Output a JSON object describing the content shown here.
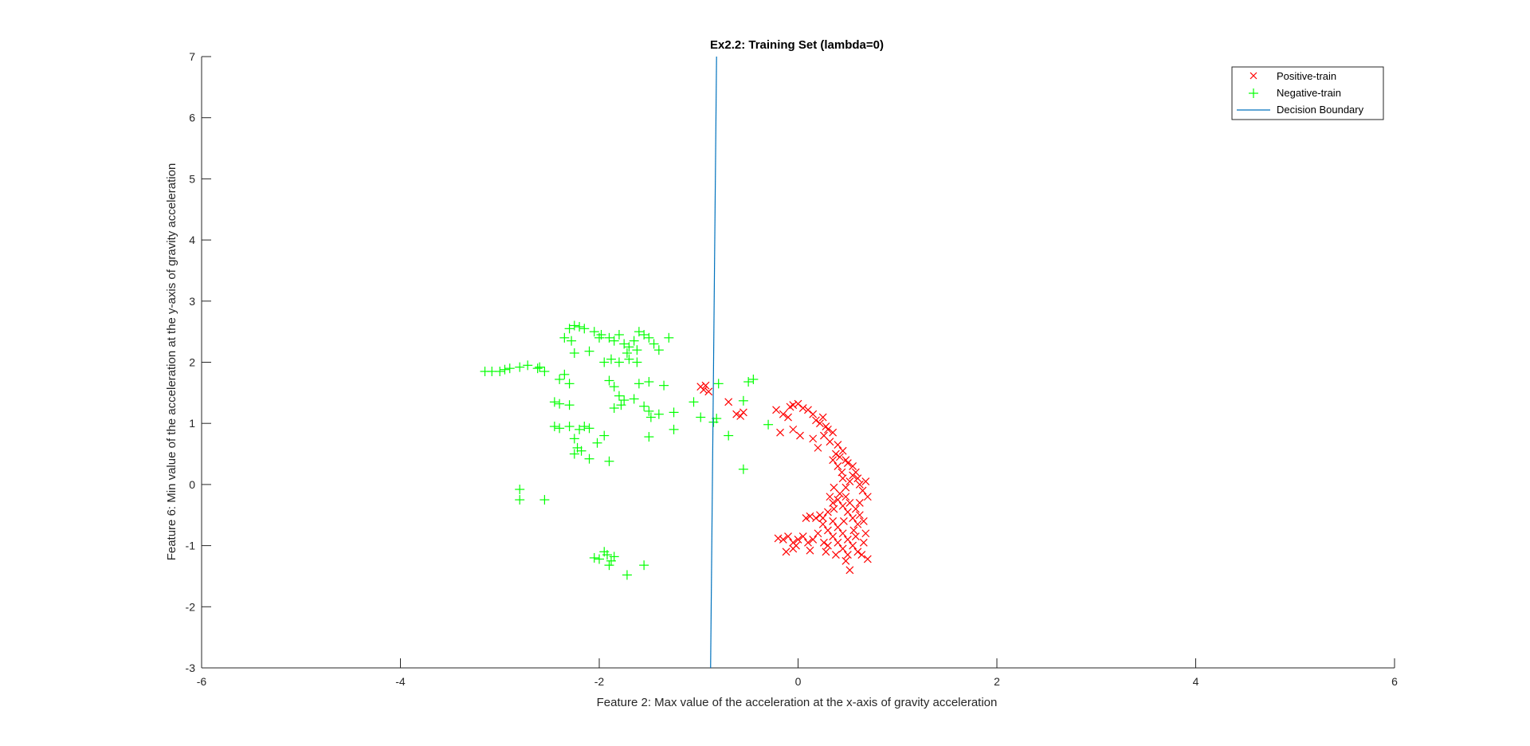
{
  "chart_data": {
    "type": "scatter",
    "title": "Ex2.2: Training Set (lambda=0)",
    "xlabel": "Feature 2: Max value of the acceleration at the x-axis of gravity acceleration",
    "ylabel": "Feature 6: Min value of the acceleration at the y-axis of gravity acceleration",
    "xlim": [
      -6,
      6
    ],
    "ylim": [
      -3,
      7
    ],
    "xticks": [
      "-6",
      "-4",
      "-2",
      "0",
      "2",
      "4",
      "6"
    ],
    "yticks": [
      "-3",
      "-2",
      "-1",
      "0",
      "1",
      "2",
      "3",
      "4",
      "5",
      "6",
      "7"
    ],
    "grid": false,
    "legend_position": "top-right",
    "series": [
      {
        "name": "Positive-train",
        "marker": "x",
        "color": "#ff0000",
        "points": [
          [
            -0.98,
            1.6
          ],
          [
            -0.95,
            1.55
          ],
          [
            -0.93,
            1.62
          ],
          [
            -0.9,
            1.52
          ],
          [
            -0.7,
            1.35
          ],
          [
            -0.62,
            1.15
          ],
          [
            -0.58,
            1.12
          ],
          [
            -0.55,
            1.18
          ],
          [
            -0.22,
            1.22
          ],
          [
            -0.15,
            1.15
          ],
          [
            -0.1,
            1.1
          ],
          [
            -0.08,
            1.27
          ],
          [
            -0.05,
            1.3
          ],
          [
            0.0,
            1.32
          ],
          [
            0.05,
            1.25
          ],
          [
            0.1,
            1.22
          ],
          [
            0.15,
            1.15
          ],
          [
            -0.18,
            0.85
          ],
          [
            -0.05,
            0.9
          ],
          [
            0.02,
            0.8
          ],
          [
            0.18,
            1.05
          ],
          [
            0.22,
            1.0
          ],
          [
            0.25,
            1.1
          ],
          [
            0.28,
            0.95
          ],
          [
            0.3,
            0.9
          ],
          [
            0.35,
            0.85
          ],
          [
            0.26,
            0.8
          ],
          [
            0.32,
            0.7
          ],
          [
            0.4,
            0.65
          ],
          [
            0.45,
            0.55
          ],
          [
            0.38,
            0.5
          ],
          [
            0.42,
            0.45
          ],
          [
            0.48,
            0.4
          ],
          [
            0.5,
            0.35
          ],
          [
            0.55,
            0.3
          ],
          [
            0.58,
            0.2
          ],
          [
            0.6,
            0.1
          ],
          [
            0.62,
            0.0
          ],
          [
            0.65,
            -0.1
          ],
          [
            0.68,
            0.05
          ],
          [
            0.7,
            -0.2
          ],
          [
            0.55,
            0.15
          ],
          [
            0.52,
            0.05
          ],
          [
            0.48,
            -0.05
          ],
          [
            0.45,
            0.1
          ],
          [
            0.42,
            -0.15
          ],
          [
            0.4,
            -0.25
          ],
          [
            0.45,
            -0.35
          ],
          [
            0.5,
            -0.45
          ],
          [
            0.55,
            -0.55
          ],
          [
            0.6,
            -0.65
          ],
          [
            0.62,
            -0.5
          ],
          [
            0.58,
            -0.4
          ],
          [
            0.52,
            -0.3
          ],
          [
            0.48,
            -0.2
          ],
          [
            0.35,
            -0.3
          ],
          [
            0.3,
            -0.45
          ],
          [
            0.25,
            -0.55
          ],
          [
            0.35,
            -0.6
          ],
          [
            0.4,
            -0.7
          ],
          [
            0.45,
            -0.8
          ],
          [
            0.5,
            -0.9
          ],
          [
            0.55,
            -1.0
          ],
          [
            0.6,
            -1.1
          ],
          [
            0.5,
            -1.15
          ],
          [
            0.45,
            -1.05
          ],
          [
            0.4,
            -0.95
          ],
          [
            0.35,
            -0.85
          ],
          [
            0.3,
            -0.75
          ],
          [
            0.25,
            -0.65
          ],
          [
            0.2,
            -0.8
          ],
          [
            0.15,
            -0.9
          ],
          [
            0.1,
            -0.95
          ],
          [
            0.05,
            -0.85
          ],
          [
            0.0,
            -0.9
          ],
          [
            -0.05,
            -0.95
          ],
          [
            -0.1,
            -0.85
          ],
          [
            -0.15,
            -0.9
          ],
          [
            -0.2,
            -0.88
          ],
          [
            -0.05,
            -1.05
          ],
          [
            0.12,
            -1.08
          ],
          [
            0.28,
            -1.1
          ],
          [
            0.38,
            -1.15
          ],
          [
            0.48,
            -1.25
          ],
          [
            0.52,
            -1.4
          ],
          [
            0.7,
            -1.22
          ],
          [
            0.64,
            -1.15
          ],
          [
            0.66,
            -0.95
          ],
          [
            0.68,
            -0.8
          ],
          [
            0.58,
            -0.85
          ],
          [
            0.22,
            -0.5
          ],
          [
            0.18,
            -0.55
          ],
          [
            0.12,
            -0.52
          ],
          [
            0.08,
            -0.55
          ],
          [
            0.32,
            -0.2
          ],
          [
            0.36,
            -0.05
          ],
          [
            0.44,
            0.2
          ],
          [
            0.4,
            0.3
          ],
          [
            0.35,
            0.4
          ],
          [
            0.2,
            0.6
          ],
          [
            0.15,
            0.75
          ],
          [
            0.3,
            -1.0
          ],
          [
            0.62,
            -0.3
          ],
          [
            0.66,
            -0.6
          ],
          [
            0.56,
            -0.75
          ],
          [
            0.46,
            -0.6
          ],
          [
            0.36,
            -0.4
          ],
          [
            0.26,
            -0.95
          ],
          [
            -0.02,
            -1.0
          ],
          [
            -0.12,
            -1.1
          ]
        ]
      },
      {
        "name": "Negative-train",
        "marker": "+",
        "color": "#00ff00",
        "points": [
          [
            -3.15,
            1.85
          ],
          [
            -3.08,
            1.85
          ],
          [
            -3.0,
            1.85
          ],
          [
            -2.95,
            1.88
          ],
          [
            -2.9,
            1.9
          ],
          [
            -2.8,
            1.92
          ],
          [
            -2.72,
            1.95
          ],
          [
            -2.62,
            1.9
          ],
          [
            -2.55,
            1.85
          ],
          [
            -2.6,
            1.92
          ],
          [
            -2.3,
            2.55
          ],
          [
            -2.25,
            2.6
          ],
          [
            -2.2,
            2.58
          ],
          [
            -2.15,
            2.55
          ],
          [
            -2.35,
            2.4
          ],
          [
            -2.28,
            2.35
          ],
          [
            -2.05,
            2.5
          ],
          [
            -1.98,
            2.45
          ],
          [
            -1.9,
            2.4
          ],
          [
            -1.85,
            2.35
          ],
          [
            -1.8,
            2.45
          ],
          [
            -1.75,
            2.3
          ],
          [
            -1.7,
            2.25
          ],
          [
            -1.65,
            2.35
          ],
          [
            -1.6,
            2.5
          ],
          [
            -1.55,
            2.45
          ],
          [
            -1.5,
            2.4
          ],
          [
            -1.45,
            2.3
          ],
          [
            -1.4,
            2.2
          ],
          [
            -1.3,
            2.4
          ],
          [
            -1.95,
            2.0
          ],
          [
            -1.88,
            2.05
          ],
          [
            -1.8,
            2.0
          ],
          [
            -1.7,
            2.05
          ],
          [
            -1.62,
            2.0
          ],
          [
            -2.1,
            2.18
          ],
          [
            -2.25,
            2.15
          ],
          [
            -2.4,
            1.72
          ],
          [
            -2.35,
            1.8
          ],
          [
            -2.3,
            1.65
          ],
          [
            -1.9,
            1.7
          ],
          [
            -1.85,
            1.6
          ],
          [
            -1.6,
            1.65
          ],
          [
            -1.5,
            1.68
          ],
          [
            -1.35,
            1.62
          ],
          [
            -1.8,
            1.45
          ],
          [
            -1.75,
            1.38
          ],
          [
            -1.78,
            1.3
          ],
          [
            -1.65,
            1.4
          ],
          [
            -1.55,
            1.28
          ],
          [
            -1.5,
            1.2
          ],
          [
            -1.48,
            1.1
          ],
          [
            -1.4,
            1.15
          ],
          [
            -1.85,
            1.25
          ],
          [
            -2.45,
            1.35
          ],
          [
            -2.4,
            1.32
          ],
          [
            -2.3,
            1.3
          ],
          [
            -2.45,
            0.95
          ],
          [
            -2.4,
            0.92
          ],
          [
            -2.3,
            0.95
          ],
          [
            -2.2,
            0.9
          ],
          [
            -2.15,
            0.95
          ],
          [
            -2.1,
            0.92
          ],
          [
            -2.25,
            0.75
          ],
          [
            -2.22,
            0.6
          ],
          [
            -2.18,
            0.55
          ],
          [
            -2.25,
            0.5
          ],
          [
            -2.1,
            0.42
          ],
          [
            -2.02,
            0.68
          ],
          [
            -1.95,
            0.8
          ],
          [
            -1.9,
            0.38
          ],
          [
            -1.5,
            0.78
          ],
          [
            -1.25,
            0.9
          ],
          [
            -1.25,
            1.18
          ],
          [
            -1.05,
            1.35
          ],
          [
            -0.98,
            1.1
          ],
          [
            -0.85,
            1.02
          ],
          [
            -0.82,
            1.08
          ],
          [
            -0.8,
            1.65
          ],
          [
            -0.7,
            0.8
          ],
          [
            -0.55,
            1.37
          ],
          [
            -0.5,
            1.68
          ],
          [
            -0.45,
            1.72
          ],
          [
            -0.3,
            0.98
          ],
          [
            -0.55,
            0.25
          ],
          [
            -2.8,
            -0.08
          ],
          [
            -2.8,
            -0.25
          ],
          [
            -2.55,
            -0.25
          ],
          [
            -2.05,
            -1.2
          ],
          [
            -2.0,
            -1.22
          ],
          [
            -1.92,
            -1.15
          ],
          [
            -1.88,
            -1.25
          ],
          [
            -1.85,
            -1.18
          ],
          [
            -1.9,
            -1.32
          ],
          [
            -1.72,
            -1.48
          ],
          [
            -1.55,
            -1.32
          ],
          [
            -1.95,
            -1.1
          ],
          [
            -2.0,
            2.4
          ],
          [
            -1.72,
            2.15
          ],
          [
            -1.62,
            2.2
          ]
        ]
      },
      {
        "name": "Decision Boundary",
        "type": "line",
        "color": "#0072bd",
        "points": [
          [
            -0.82,
            7
          ],
          [
            -0.88,
            -3
          ]
        ]
      }
    ]
  }
}
